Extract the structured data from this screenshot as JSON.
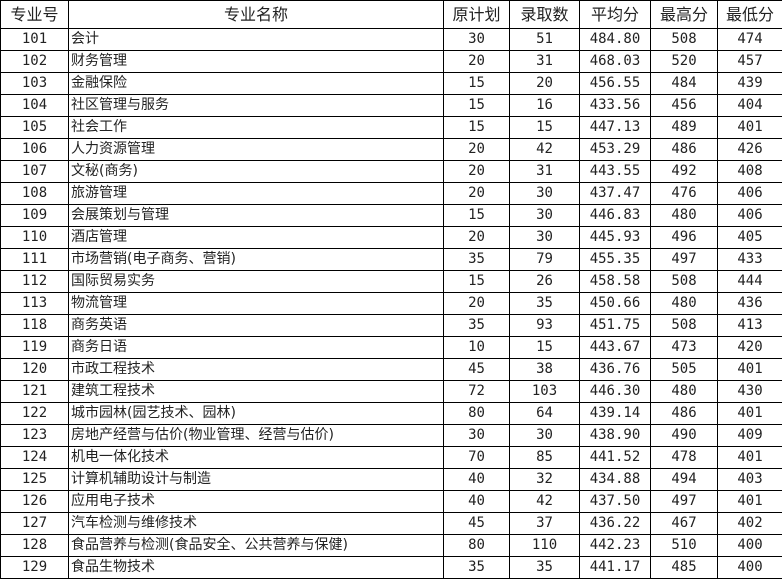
{
  "headers": [
    "专业号",
    "专业名称",
    "原计划",
    "录取数",
    "平均分",
    "最高分",
    "最低分"
  ],
  "rows": [
    [
      "101",
      "会计",
      "30",
      "51",
      "484.80",
      "508",
      "474"
    ],
    [
      "102",
      "财务管理",
      "20",
      "31",
      "468.03",
      "520",
      "457"
    ],
    [
      "103",
      "金融保险",
      "15",
      "20",
      "456.55",
      "484",
      "439"
    ],
    [
      "104",
      "社区管理与服务",
      "15",
      "16",
      "433.56",
      "456",
      "404"
    ],
    [
      "105",
      "社会工作",
      "15",
      "15",
      "447.13",
      "489",
      "401"
    ],
    [
      "106",
      "人力资源管理",
      "20",
      "42",
      "453.29",
      "486",
      "426"
    ],
    [
      "107",
      "文秘(商务)",
      "20",
      "31",
      "443.55",
      "492",
      "408"
    ],
    [
      "108",
      "旅游管理",
      "20",
      "30",
      "437.47",
      "476",
      "406"
    ],
    [
      "109",
      "会展策划与管理",
      "15",
      "30",
      "446.83",
      "480",
      "406"
    ],
    [
      "110",
      "酒店管理",
      "20",
      "30",
      "445.93",
      "496",
      "405"
    ],
    [
      "111",
      "市场营销(电子商务、营销)",
      "35",
      "79",
      "455.35",
      "497",
      "433"
    ],
    [
      "112",
      "国际贸易实务",
      "15",
      "26",
      "458.58",
      "508",
      "444"
    ],
    [
      "113",
      "物流管理",
      "20",
      "35",
      "450.66",
      "480",
      "436"
    ],
    [
      "118",
      "商务英语",
      "35",
      "93",
      "451.75",
      "508",
      "413"
    ],
    [
      "119",
      "商务日语",
      "10",
      "15",
      "443.67",
      "473",
      "420"
    ],
    [
      "120",
      "市政工程技术",
      "45",
      "38",
      "436.76",
      "505",
      "401"
    ],
    [
      "121",
      "建筑工程技术",
      "72",
      "103",
      "446.30",
      "480",
      "430"
    ],
    [
      "122",
      "城市园林(园艺技术、园林)",
      "80",
      "64",
      "439.14",
      "486",
      "401"
    ],
    [
      "123",
      "房地产经营与估价(物业管理、经营与估价)",
      "30",
      "30",
      "438.90",
      "490",
      "409"
    ],
    [
      "124",
      "机电一体化技术",
      "70",
      "85",
      "441.52",
      "478",
      "401"
    ],
    [
      "125",
      "计算机辅助设计与制造",
      "40",
      "32",
      "434.88",
      "494",
      "403"
    ],
    [
      "126",
      "应用电子技术",
      "40",
      "42",
      "437.50",
      "497",
      "401"
    ],
    [
      "127",
      "汽车检测与维修技术",
      "45",
      "37",
      "436.22",
      "467",
      "402"
    ],
    [
      "128",
      "食品营养与检测(食品安全、公共营养与保健)",
      "80",
      "110",
      "442.23",
      "510",
      "400"
    ],
    [
      "129",
      "食品生物技术",
      "35",
      "35",
      "441.17",
      "485",
      "400"
    ]
  ]
}
